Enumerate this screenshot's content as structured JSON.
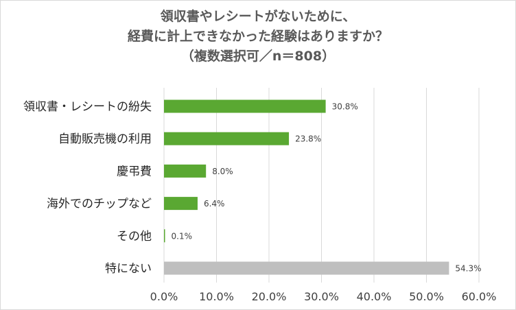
{
  "chart_data": {
    "type": "bar",
    "orientation": "horizontal",
    "title_lines": [
      "領収書やレシートがないために、",
      "経費に計上できなかった経験はありますか？",
      "（複数選択可／n＝808）"
    ],
    "categories": [
      "領収書・レシートの紛失",
      "自動販売機の利用",
      "慶弔費",
      "海外でのチップなど",
      "その他",
      "特にない"
    ],
    "values": [
      30.8,
      23.8,
      8.0,
      6.4,
      0.1,
      54.3
    ],
    "value_labels": [
      "30.8%",
      "23.8%",
      "8.0%",
      "6.4%",
      "0.1%",
      "54.3%"
    ],
    "bar_colors": [
      "#5aa832",
      "#5aa832",
      "#5aa832",
      "#5aa832",
      "#5aa832",
      "#bfbfbf"
    ],
    "xlim": [
      0,
      60
    ],
    "x_ticks": [
      "0.0%",
      "10.0%",
      "20.0%",
      "30.0%",
      "40.0%",
      "50.0%",
      "60.0%"
    ],
    "grid": true
  }
}
